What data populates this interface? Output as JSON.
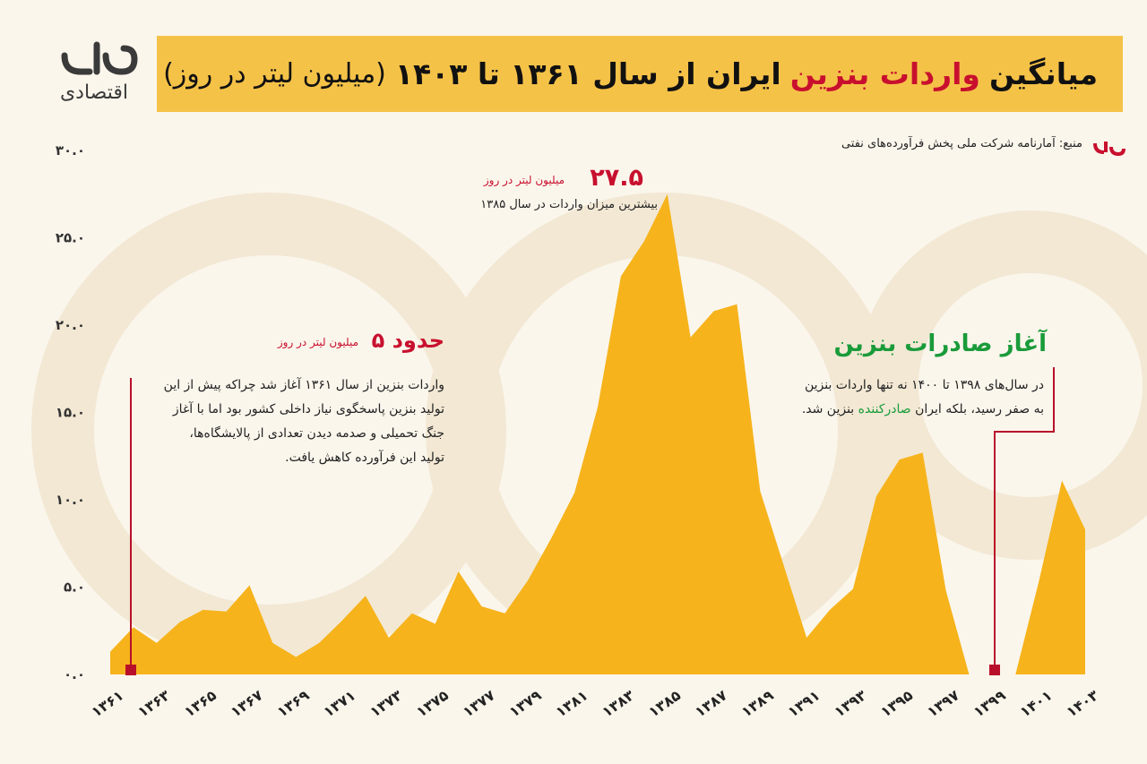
{
  "chart_data": {
    "type": "area",
    "title": [
      "میانگین",
      "واردات بنزین",
      "ایران از سال ۱۳۶۱ تا ۱۴۰۳",
      "(میلیون لیتر در روز)"
    ],
    "logo_text": "اقتصادی",
    "source": "منبع: آمارنامه شرکت ملی پخش فرآورده‌های نفتی",
    "categories": [
      "۱۳۶۱",
      null,
      "۱۳۶۳",
      null,
      "۱۳۶۵",
      null,
      "۱۳۶۷",
      null,
      "۱۳۶۹",
      null,
      "۱۳۷۱",
      null,
      "۱۳۷۳",
      null,
      "۱۳۷۵",
      null,
      "۱۳۷۷",
      null,
      "۱۳۷۹",
      null,
      "۱۳۸۱",
      null,
      "۱۳۸۳",
      null,
      "۱۳۸۵",
      null,
      "۱۳۸۷",
      null,
      "۱۳۸۹",
      null,
      "۱۳۹۱",
      null,
      "۱۳۹۳",
      null,
      "۱۳۹۵",
      null,
      "۱۳۹۷",
      null,
      "۱۳۹۹",
      null,
      "۱۴۰۱",
      null,
      "۱۴۰۳"
    ],
    "values": [
      1.3,
      2.7,
      1.8,
      3.0,
      3.7,
      3.6,
      5.1,
      1.8,
      1.0,
      1.8,
      3.1,
      4.5,
      2.1,
      3.5,
      2.9,
      5.9,
      3.9,
      3.5,
      5.4,
      7.8,
      10.4,
      15.3,
      22.8,
      24.8,
      27.5,
      19.3,
      20.8,
      21.2,
      10.5,
      6.3,
      2.1,
      3.7,
      4.9,
      10.2,
      12.3,
      12.7,
      4.8,
      0,
      0,
      0,
      5.3,
      11.1,
      8.3
    ],
    "color": "#f6b31b",
    "ylim": [
      0,
      30
    ],
    "yticks": [
      {
        "value": 0,
        "label": "۰.۰"
      },
      {
        "value": 5,
        "label": "۵.۰"
      },
      {
        "value": 10,
        "label": "۱۰.۰"
      },
      {
        "value": 15,
        "label": "۱۵.۰"
      },
      {
        "value": 20,
        "label": "۲۰.۰"
      },
      {
        "value": 25,
        "label": "۲۵.۰"
      },
      {
        "value": 30,
        "label": "۳۰.۰"
      }
    ],
    "annotations": [
      {
        "value": "۲۷.۵",
        "unit": "میلیون لیتر در روز",
        "text": "بیشترین میزان واردات در سال ۱۳۸۵"
      },
      {
        "title": "حدود ۵",
        "unit": "میلیون لیتر در روز",
        "lines": [
          "واردات بنزین از سال ۱۳۶۱ آغاز شد چراکه پیش از این",
          "تولید بنزین پاسخگوی نیاز داخلی کشور بود اما با آغاز",
          "جنگ تحمیلی و صدمه دیدن تعدادی از پالایشگاه‌ها،",
          "تولید این فرآورده کاهش یافت."
        ]
      },
      {
        "title": "آغاز صادرات بنزین",
        "lines": [
          "در سال‌های ۱۳۹۸ تا ۱۴۰۰ نه تنها واردات بنزین",
          "به صفر رسید، بلکه ایران",
          "صادرکننده",
          "بنزین شد."
        ]
      }
    ]
  }
}
